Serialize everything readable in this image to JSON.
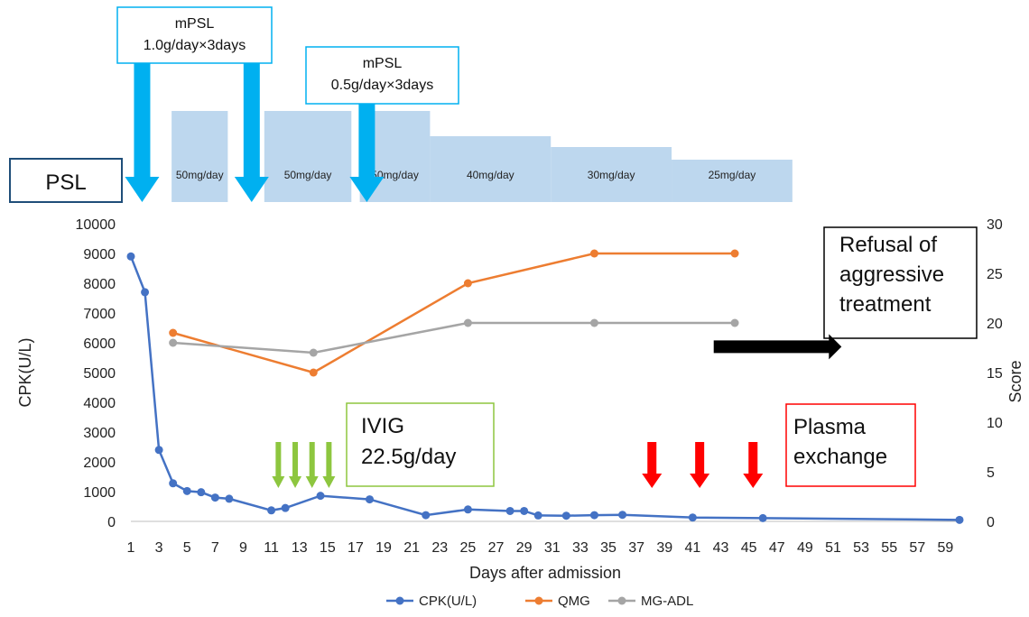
{
  "chart_data": {
    "type": "line",
    "xlabel": "Days after admission",
    "ylabel_left": "CPK(U/L)",
    "ylabel_right": "Score",
    "xlim": [
      1,
      60
    ],
    "ylim_left": [
      0,
      10000
    ],
    "ylim_right": [
      0,
      30
    ],
    "x_ticks": [
      1,
      3,
      5,
      7,
      9,
      11,
      13,
      15,
      17,
      19,
      21,
      23,
      25,
      27,
      29,
      31,
      33,
      35,
      37,
      39,
      41,
      43,
      45,
      47,
      49,
      51,
      53,
      55,
      57,
      59
    ],
    "y_ticks_left": [
      0,
      1000,
      2000,
      3000,
      4000,
      5000,
      6000,
      7000,
      8000,
      9000,
      10000
    ],
    "y_ticks_right": [
      0,
      5,
      10,
      15,
      20,
      25,
      30
    ],
    "legend_position": "bottom",
    "series": [
      {
        "name": "CPK(U/L)",
        "axis": "left",
        "color": "#4472c4",
        "points": [
          [
            1,
            8900
          ],
          [
            2,
            7700
          ],
          [
            3,
            2400
          ],
          [
            4,
            1280
          ],
          [
            5,
            1020
          ],
          [
            6,
            980
          ],
          [
            7,
            800
          ],
          [
            8,
            760
          ],
          [
            11,
            370
          ],
          [
            12,
            450
          ],
          [
            14.5,
            860
          ],
          [
            18,
            740
          ],
          [
            22,
            210
          ],
          [
            25,
            400
          ],
          [
            28,
            350
          ],
          [
            29,
            350
          ],
          [
            30,
            200
          ],
          [
            32,
            190
          ],
          [
            34,
            210
          ],
          [
            36,
            220
          ],
          [
            41,
            130
          ],
          [
            46,
            110
          ],
          [
            60,
            50
          ]
        ]
      },
      {
        "name": "QMG",
        "axis": "right",
        "color": "#ed7d31",
        "points": [
          [
            4,
            19
          ],
          [
            14,
            15
          ],
          [
            25,
            24
          ],
          [
            34,
            27
          ],
          [
            44,
            27
          ]
        ]
      },
      {
        "name": "MG-ADL",
        "axis": "right",
        "color": "#a5a5a5",
        "points": [
          [
            4,
            18
          ],
          [
            14,
            17
          ],
          [
            25,
            20
          ],
          [
            34,
            20
          ],
          [
            44,
            20
          ]
        ]
      }
    ],
    "psl": {
      "label": "PSL",
      "blocks": [
        {
          "label": "50mg/day",
          "x_start": 3.9,
          "x_end": 7.9,
          "level": 3
        },
        {
          "label": "50mg/day",
          "x_start": 10.5,
          "x_end": 16.7,
          "level": 3
        },
        {
          "label": "50mg/day",
          "x_start": 17.3,
          "x_end": 22.3,
          "level": 3
        },
        {
          "label": "40mg/day",
          "x_start": 22.3,
          "x_end": 30.9,
          "level": 2
        },
        {
          "label": "30mg/day",
          "x_start": 30.9,
          "x_end": 39.5,
          "level": 1
        },
        {
          "label": "25mg/day",
          "x_start": 39.5,
          "x_end": 48.1,
          "level": 0
        }
      ]
    },
    "mpsl": [
      {
        "line1": "mPSL",
        "line2": "1.0g/day×3days",
        "arrow_days": [
          1.8,
          9.6
        ]
      },
      {
        "line1": "mPSL",
        "line2": "0.5g/day×3days",
        "arrow_days": [
          17.8
        ]
      }
    ],
    "annotations": {
      "ivig": {
        "line1": "IVIG",
        "line2": "22.5g/day",
        "arrow_days": [
          11.5,
          12.7,
          13.9,
          15.1
        ],
        "color": "#8dc63f"
      },
      "plasma": {
        "line1": "Plasma",
        "line2": "exchange",
        "arrow_days": [
          38.1,
          41.5,
          45.3
        ],
        "color": "#ff0000"
      },
      "refusal": {
        "lines": [
          "Refusal of",
          "aggressive",
          "treatment"
        ],
        "arrow_x_start": 42.5,
        "arrow_x_end": 51.6,
        "arrow_y_right": 17.6
      }
    }
  }
}
